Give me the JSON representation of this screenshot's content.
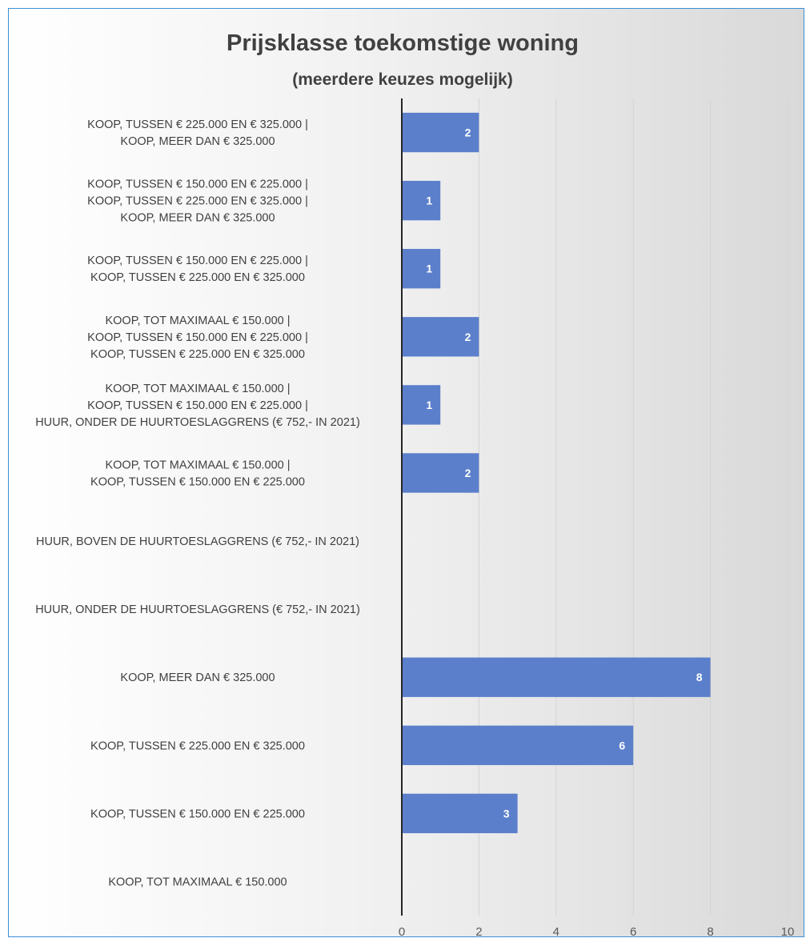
{
  "chart_data": {
    "type": "bar",
    "orientation": "horizontal",
    "title": "Prijsklasse toekomstige woning",
    "subtitle": "(meerdere keuzes mogelijk)",
    "xlim": [
      0,
      10
    ],
    "x_ticks": [
      "0",
      "2",
      "4",
      "6",
      "8",
      "10"
    ],
    "grid": true,
    "legend": "none",
    "bar_color": "#5b7fcb",
    "categories": [
      [
        "KOOP, TUSSEN € 225.000 EN € 325.000 |",
        "KOOP, MEER DAN € 325.000"
      ],
      [
        "KOOP, TUSSEN € 150.000 EN € 225.000 |",
        "KOOP, TUSSEN € 225.000 EN € 325.000 |",
        "KOOP, MEER DAN € 325.000"
      ],
      [
        "KOOP, TUSSEN € 150.000 EN € 225.000 |",
        "KOOP, TUSSEN € 225.000 EN € 325.000"
      ],
      [
        "KOOP, TOT MAXIMAAL € 150.000 |",
        "KOOP, TUSSEN € 150.000 EN € 225.000 |",
        "KOOP, TUSSEN € 225.000 EN € 325.000"
      ],
      [
        "KOOP, TOT MAXIMAAL € 150.000 |",
        "KOOP, TUSSEN € 150.000 EN € 225.000 |",
        "HUUR, ONDER DE HUURTOESLAGGRENS (€ 752,- IN 2021)"
      ],
      [
        "KOOP, TOT MAXIMAAL € 150.000 |",
        "KOOP, TUSSEN € 150.000 EN € 225.000"
      ],
      [
        "HUUR, BOVEN DE HUURTOESLAGGRENS (€ 752,- IN 2021)"
      ],
      [
        "HUUR, ONDER DE HUURTOESLAGGRENS (€ 752,- IN 2021)"
      ],
      [
        "KOOP, MEER DAN € 325.000"
      ],
      [
        "KOOP, TUSSEN € 225.000 EN € 325.000"
      ],
      [
        "KOOP, TUSSEN € 150.000 EN € 225.000"
      ],
      [
        "KOOP, TOT MAXIMAAL € 150.000"
      ]
    ],
    "values": [
      2,
      1,
      1,
      2,
      1,
      2,
      0,
      0,
      8,
      6,
      3,
      0
    ]
  }
}
